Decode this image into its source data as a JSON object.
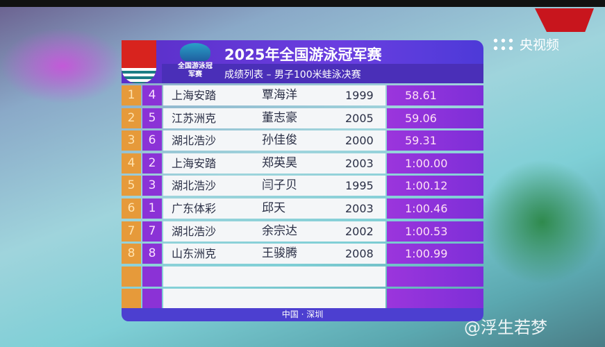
{
  "broadcaster": "央视频",
  "watermark": "@浮生若梦",
  "logo_text": "全国游泳冠军赛",
  "title": "2025年全国游泳冠军赛",
  "subtitle": "成绩列表 – 男子100米蛙泳决赛",
  "footer": "中国 · 深圳",
  "colors": {
    "rank": "#e69a3a",
    "lane": "#8b32d6",
    "time": "#9b35dc",
    "header": "#5a2fc8"
  },
  "results": [
    {
      "rank": "1",
      "lane": "4",
      "team": "上海安踏",
      "name": "覃海洋",
      "year": "1999",
      "time": "58.61"
    },
    {
      "rank": "2",
      "lane": "5",
      "team": "江苏洲克",
      "name": "董志豪",
      "year": "2005",
      "time": "59.06"
    },
    {
      "rank": "3",
      "lane": "6",
      "team": "湖北浩沙",
      "name": "孙佳俊",
      "year": "2000",
      "time": "59.31"
    },
    {
      "rank": "4",
      "lane": "2",
      "team": "上海安踏",
      "name": "郑英昊",
      "year": "2003",
      "time": "1:00.00"
    },
    {
      "rank": "5",
      "lane": "3",
      "team": "湖北浩沙",
      "name": "闫子贝",
      "year": "1995",
      "time": "1:00.12"
    },
    {
      "rank": "6",
      "lane": "1",
      "team": "广东体彩",
      "name": "邱天",
      "year": "2003",
      "time": "1:00.46"
    },
    {
      "rank": "7",
      "lane": "7",
      "team": "湖北浩沙",
      "name": "余宗达",
      "year": "2002",
      "time": "1:00.53"
    },
    {
      "rank": "8",
      "lane": "8",
      "team": "山东洲克",
      "name": "王骏腾",
      "year": "2008",
      "time": "1:00.99"
    },
    {
      "rank": "",
      "lane": "",
      "team": "",
      "name": "",
      "year": "",
      "time": ""
    },
    {
      "rank": "",
      "lane": "",
      "team": "",
      "name": "",
      "year": "",
      "time": ""
    }
  ]
}
